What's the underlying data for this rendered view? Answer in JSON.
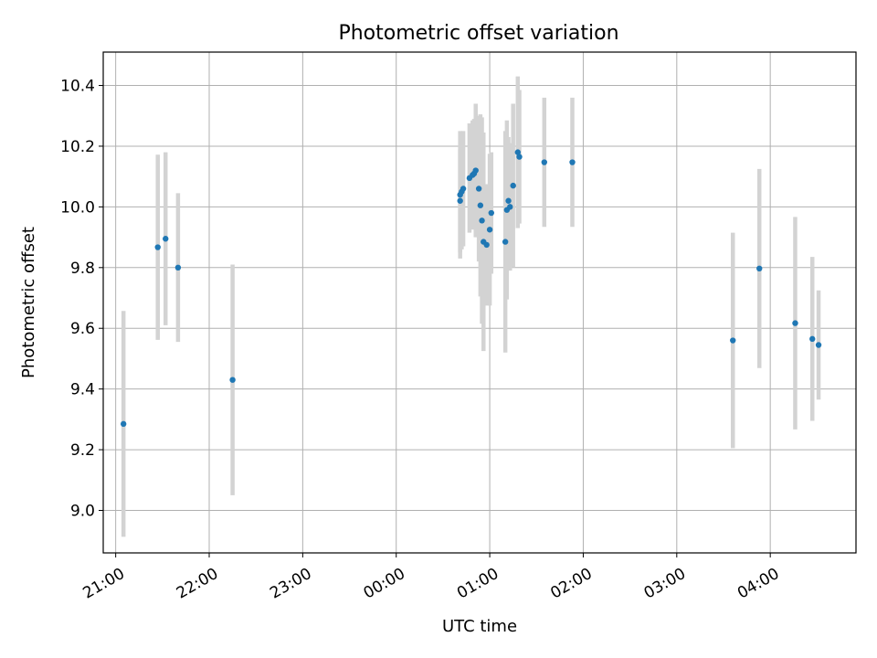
{
  "chart_data": {
    "type": "scatter",
    "title": "Photometric offset variation",
    "xlabel": "UTC time",
    "ylabel": "Photometric offset",
    "x_axis_format": "time",
    "x_start": "21:00",
    "xlim": [
      "20:52",
      "04:55"
    ],
    "ylim": [
      8.86,
      10.51
    ],
    "xticks": [
      "21:00",
      "22:00",
      "23:00",
      "00:00",
      "01:00",
      "02:00",
      "03:00",
      "04:00"
    ],
    "yticks": [
      9.0,
      9.2,
      9.4,
      9.6,
      9.8,
      10.0,
      10.2,
      10.4
    ],
    "ytick_labels": [
      "9.0",
      "9.2",
      "9.4",
      "9.6",
      "9.8",
      "10.0",
      "10.2",
      "10.4"
    ],
    "grid": true,
    "series": [
      {
        "marker_color": "#1f77b4",
        "errorbar_color": "#d3d3d3",
        "points": [
          {
            "t": "21:05",
            "y": 9.285,
            "err": 0.372
          },
          {
            "t": "21:27",
            "y": 9.867,
            "err": 0.305
          },
          {
            "t": "21:32",
            "y": 9.895,
            "err": 0.285
          },
          {
            "t": "21:40",
            "y": 9.8,
            "err": 0.245
          },
          {
            "t": "22:15",
            "y": 9.43,
            "err": 0.38
          },
          {
            "t": "00:41",
            "y": 10.02,
            "err": 0.17
          },
          {
            "t": "00:41",
            "y": 10.04,
            "err": 0.21
          },
          {
            "t": "00:42",
            "y": 10.05,
            "err": 0.19
          },
          {
            "t": "00:43",
            "y": 10.06,
            "err": 0.19
          },
          {
            "t": "00:47",
            "y": 10.095,
            "err": 0.18
          },
          {
            "t": "00:49",
            "y": 10.105,
            "err": 0.18
          },
          {
            "t": "00:50",
            "y": 10.11,
            "err": 0.18
          },
          {
            "t": "00:51",
            "y": 10.12,
            "err": 0.22
          },
          {
            "t": "00:53",
            "y": 10.06,
            "err": 0.24
          },
          {
            "t": "00:54",
            "y": 10.005,
            "err": 0.3
          },
          {
            "t": "00:55",
            "y": 9.955,
            "err": 0.34
          },
          {
            "t": "00:56",
            "y": 9.885,
            "err": 0.36
          },
          {
            "t": "00:58",
            "y": 9.875,
            "err": 0.2
          },
          {
            "t": "01:00",
            "y": 9.925,
            "err": 0.25
          },
          {
            "t": "01:01",
            "y": 9.98,
            "err": 0.2
          },
          {
            "t": "01:10",
            "y": 9.885,
            "err": 0.365
          },
          {
            "t": "01:11",
            "y": 9.99,
            "err": 0.295
          },
          {
            "t": "01:12",
            "y": 10.02,
            "err": 0.21
          },
          {
            "t": "01:13",
            "y": 10.0,
            "err": 0.21
          },
          {
            "t": "01:15",
            "y": 10.07,
            "err": 0.27
          },
          {
            "t": "01:18",
            "y": 10.18,
            "err": 0.25
          },
          {
            "t": "01:19",
            "y": 10.165,
            "err": 0.22
          },
          {
            "t": "01:35",
            "y": 10.147,
            "err": 0.213
          },
          {
            "t": "01:53",
            "y": 10.147,
            "err": 0.213
          },
          {
            "t": "03:36",
            "y": 9.56,
            "err": 0.355
          },
          {
            "t": "03:53",
            "y": 9.797,
            "err": 0.328
          },
          {
            "t": "04:16",
            "y": 9.617,
            "err": 0.35
          },
          {
            "t": "04:27",
            "y": 9.565,
            "err": 0.27
          },
          {
            "t": "04:31",
            "y": 9.545,
            "err": 0.18
          }
        ]
      }
    ]
  }
}
